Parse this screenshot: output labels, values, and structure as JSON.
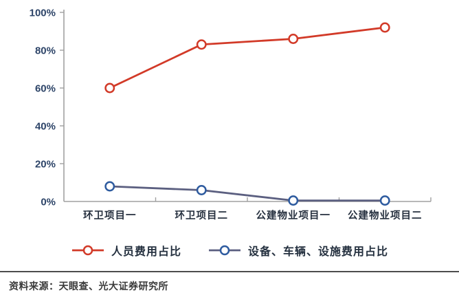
{
  "chart_data": {
    "type": "line",
    "categories": [
      "环卫项目一",
      "环卫项目二",
      "公建物业项目一",
      "公建物业项目二"
    ],
    "series": [
      {
        "name": "人员费用占比",
        "values": [
          60,
          83,
          86,
          92
        ],
        "color": "#d23a28",
        "marker_color": "#d23a28"
      },
      {
        "name": "设备、车辆、设施费用占比",
        "values": [
          8,
          6,
          0.5,
          0.5
        ],
        "color": "#5b5f80",
        "marker_color": "#2e5b9f"
      }
    ],
    "title": "",
    "xlabel": "",
    "ylabel": "",
    "ylim": [
      0,
      100
    ],
    "ytick_step": 20,
    "ytick_labels": [
      "0%",
      "20%",
      "40%",
      "60%",
      "80%",
      "100%"
    ],
    "grid": false,
    "marker": "open-circle",
    "legend_position": "bottom",
    "axis_color": "#a0a0a0",
    "ytick_label_color": "#2d4468",
    "xtick_label_color": "#26303f"
  },
  "source": {
    "label": "资料来源：天眼查、光大证券研究所"
  }
}
